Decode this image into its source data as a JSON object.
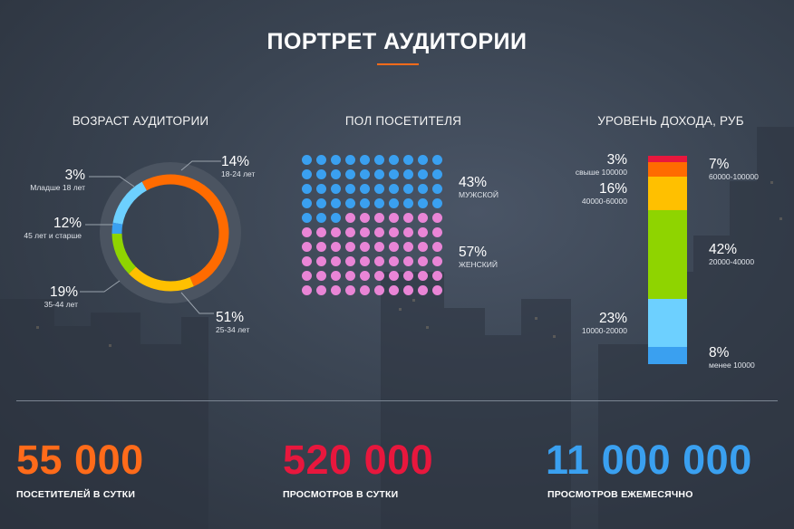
{
  "header": {
    "title": "ПОРТРЕТ АУДИТОРИИ"
  },
  "colors": {
    "accent": "#ff6b1a",
    "red": "#e8173d",
    "blue": "#3aa0f0",
    "pink": "#e985d6",
    "yellow": "#ffc000",
    "green": "#8fd400",
    "light_blue": "#6dd0ff",
    "orange": "#ff6b00"
  },
  "chart_data": [
    {
      "type": "pie",
      "title": "ВОЗРАСТ АУДИТОРИИ",
      "slices": [
        {
          "value": 14,
          "pct": "14%",
          "label": "18-24 лет",
          "color": "#6dd0ff"
        },
        {
          "value": 51,
          "pct": "51%",
          "label": "25-34 лет",
          "color": "#ff6b00"
        },
        {
          "value": 19,
          "pct": "19%",
          "label": "35-44 лет",
          "color": "#ffc000"
        },
        {
          "value": 12,
          "pct": "12%",
          "label": "45 лет и старше",
          "color": "#8fd400"
        },
        {
          "value": 3,
          "pct": "3%",
          "label": "Младше 18 лет",
          "color": "#3aa0f0"
        }
      ]
    },
    {
      "type": "waffle",
      "title": "ПОЛ ПОСЕТИТЕЛЯ",
      "grid": [
        10,
        10
      ],
      "series": [
        {
          "value": 43,
          "pct": "43%",
          "label": "МУЖСКОЙ",
          "color": "#3aa0f0"
        },
        {
          "value": 57,
          "pct": "57%",
          "label": "ЖЕНСКИЙ",
          "color": "#e985d6"
        }
      ]
    },
    {
      "type": "bar",
      "stacked": true,
      "title": "УРОВЕНЬ ДОХОДА, РУБ",
      "segments": [
        {
          "value": 3,
          "pct": "3%",
          "label": "свыше 100000",
          "color": "#e8173d"
        },
        {
          "value": 7,
          "pct": "7%",
          "label": "60000-100000",
          "color": "#ff6b00"
        },
        {
          "value": 16,
          "pct": "16%",
          "label": "40000-60000",
          "color": "#ffc000"
        },
        {
          "value": 42,
          "pct": "42%",
          "label": "20000-40000",
          "color": "#8fd400"
        },
        {
          "value": 23,
          "pct": "23%",
          "label": "10000-20000",
          "color": "#6dd0ff"
        },
        {
          "value": 8,
          "pct": "8%",
          "label": "менее 10000",
          "color": "#3aa0f0"
        }
      ]
    }
  ],
  "stats": [
    {
      "value": "55 000",
      "label": "ПОСЕТИТЕЛЕЙ В СУТКИ",
      "color": "#ff6b1a"
    },
    {
      "value": "520 000",
      "label": "ПРОСМОТРОВ В СУТКИ",
      "color": "#e8173d"
    },
    {
      "value": "11 000 000",
      "label": "ПРОСМОТРОВ ЕЖЕМЕСЯЧНО",
      "color": "#3aa0f0"
    }
  ]
}
